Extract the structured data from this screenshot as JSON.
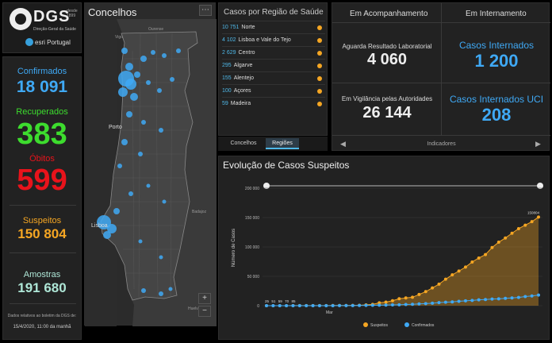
{
  "logo": {
    "title": "DGS",
    "years": [
      "desde",
      "1899"
    ],
    "subtitle": "Direção-Geral da Saúde",
    "esri": "esri Portugal"
  },
  "stats": {
    "confirmados_label": "Confirmados",
    "confirmados_value": "18 091",
    "recuperados_label": "Recuperados",
    "recuperados_value": "383",
    "obitos_label": "Óbitos",
    "obitos_value": "599",
    "suspeitos_label": "Suspeitos",
    "suspeitos_value": "150 804",
    "amostras_label": "Amostras",
    "amostras_value": "191 680",
    "footer_line1": "Dados relativos ao boletim da DGS de:",
    "footer_line2": "15/4/2020, 11:00 da manhã"
  },
  "colors": {
    "confirmados": "#3fa9f5",
    "recuperados": "#3ddc2e",
    "obitos": "#e8131b",
    "suspeitos": "#f5a623",
    "amostras": "#aee6d6",
    "accent": "#4fb8e8"
  },
  "map": {
    "title": "Concelhos",
    "place_labels": [
      "Vigo",
      "Ourense",
      "Porto",
      "Lisboa",
      "Huelva",
      "Badajoz"
    ],
    "zoom_in": "+",
    "zoom_out": "−",
    "menu_icon": "ellipsis-icon"
  },
  "regions": {
    "title": "Casos por Região de Saúde",
    "rows": [
      {
        "value": "10 751",
        "name": "Norte"
      },
      {
        "value": "4 102",
        "name": "Lisboa e Vale do Tejo"
      },
      {
        "value": "2 629",
        "name": "Centro"
      },
      {
        "value": "295",
        "name": "Algarve"
      },
      {
        "value": "155",
        "name": "Alentejo"
      },
      {
        "value": "100",
        "name": "Açores"
      },
      {
        "value": "59",
        "name": "Madeira"
      }
    ]
  },
  "tabs": [
    "Concelhos",
    "Regiões"
  ],
  "indicators": {
    "head_left": "Em Acompanhamento",
    "head_right": "Em Internamento",
    "aguarda_label": "Aguarda Resultado Laboratorial",
    "aguarda_value": "4 060",
    "vigilancia_label": "Em Vigilância pelas Autoridades",
    "vigilancia_value": "26 144",
    "internados_label": "Casos Internados",
    "internados_value": "1 200",
    "uci_label": "Casos Internados UCI",
    "uci_value": "208",
    "nav_label": "Indicadores",
    "prev_icon": "chevron-left-icon",
    "next_icon": "chevron-right-icon"
  },
  "chart": {
    "title": "Evolução de Casos Suspeitos"
  },
  "chart_data": {
    "type": "line",
    "title": "Evolução de Casos Suspeitos",
    "ylabel": "Número de Casos",
    "xlabel": "Mar",
    "ylim": [
      0,
      200000
    ],
    "yticks": [
      "200 000",
      "150 000",
      "100 000",
      "50 000",
      "0"
    ],
    "series": [
      {
        "name": "Suspeitos",
        "color": "#f5a623",
        "fill": true,
        "values": [
          25,
          51,
          59,
          70,
          85,
          101,
          117,
          133,
          181,
          224,
          281,
          339,
          375,
          471,
          637,
          1308,
          2271,
          4923,
          6061,
          8440,
          11842,
          13155,
          14309,
          19043,
          23952,
          30180,
          36577,
          45061,
          52473,
          58948,
          65661,
          74375,
          81093,
          86939,
          99017,
          108032,
          115171,
          123340,
          131127,
          137012,
          143012,
          150804
        ]
      },
      {
        "name": "Confirmados",
        "color": "#3fa9f5",
        "fill": false,
        "values": [
          2,
          4,
          6,
          9,
          13,
          21,
          30,
          39,
          41,
          59,
          78,
          112,
          169,
          245,
          331,
          448,
          642,
          785,
          1020,
          1280,
          1600,
          2060,
          2362,
          2995,
          3544,
          4268,
          5170,
          5962,
          6408,
          7443,
          8251,
          9034,
          9886,
          10524,
          11278,
          11730,
          12442,
          13141,
          13956,
          15472,
          16585,
          18091
        ]
      }
    ],
    "visible_value_labels": [
      25,
      51,
      59,
      70,
      85
    ],
    "legend": [
      "Suspeitos",
      "Confirmados"
    ],
    "legend_position": "bottom",
    "grid": true
  }
}
